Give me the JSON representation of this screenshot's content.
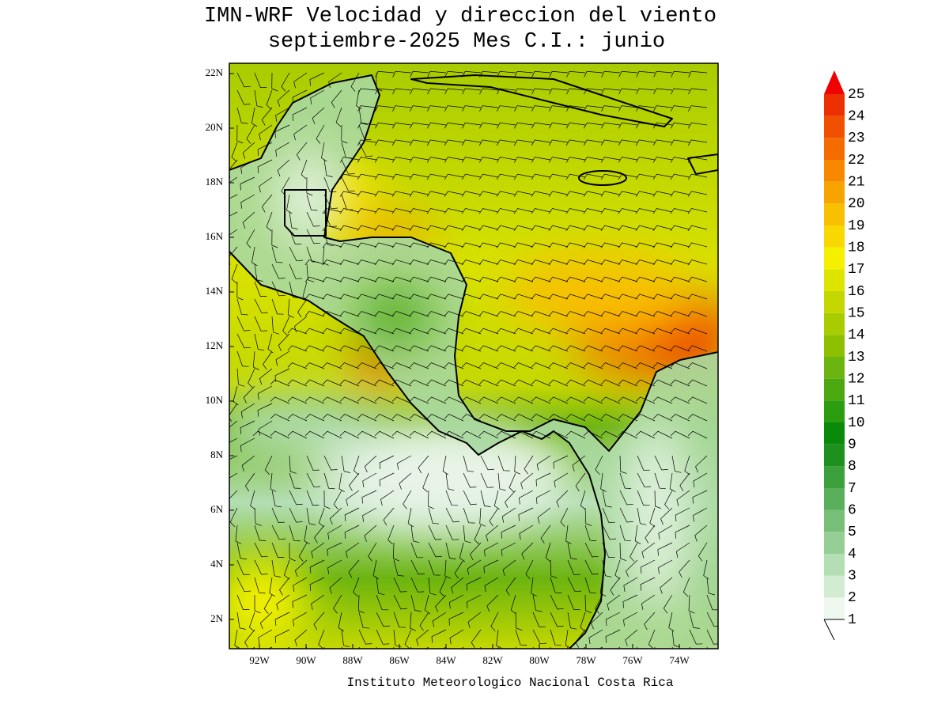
{
  "title": [
    "IMN-WRF Velocidad y direccion del viento",
    "septiembre-2025 Mes C.I.: junio"
  ],
  "map": {
    "lat_labels": [
      "22N",
      "20N",
      "18N",
      "16N",
      "14N",
      "12N",
      "10N",
      "8N",
      "6N",
      "4N",
      "2N"
    ],
    "lon_labels": [
      "92W",
      "90W",
      "88W",
      "86W",
      "84W",
      "82W",
      "80W",
      "78W",
      "76W",
      "74W"
    ]
  },
  "colorbar": {
    "levels": [
      1,
      2,
      3,
      4,
      5,
      6,
      7,
      8,
      9,
      10,
      11,
      12,
      13,
      14,
      15,
      16,
      17,
      18,
      19,
      20,
      21,
      22,
      23,
      24,
      25
    ],
    "colors": [
      "#eef8ee",
      "#d2ecd2",
      "#b4deb4",
      "#96cf96",
      "#78c078",
      "#5ab05a",
      "#3ca03c",
      "#1e901e",
      "#0a8a0a",
      "#2c9c10",
      "#4ca810",
      "#6cb410",
      "#8cc000",
      "#a8cc00",
      "#c4d800",
      "#dce400",
      "#f4f000",
      "#f8d800",
      "#f8c000",
      "#f8a400",
      "#f88800",
      "#f46c00",
      "#f05000",
      "#ec3000",
      "#f00000"
    ]
  },
  "footer": "Instituto Meteorologico Nacional Costa Rica"
}
